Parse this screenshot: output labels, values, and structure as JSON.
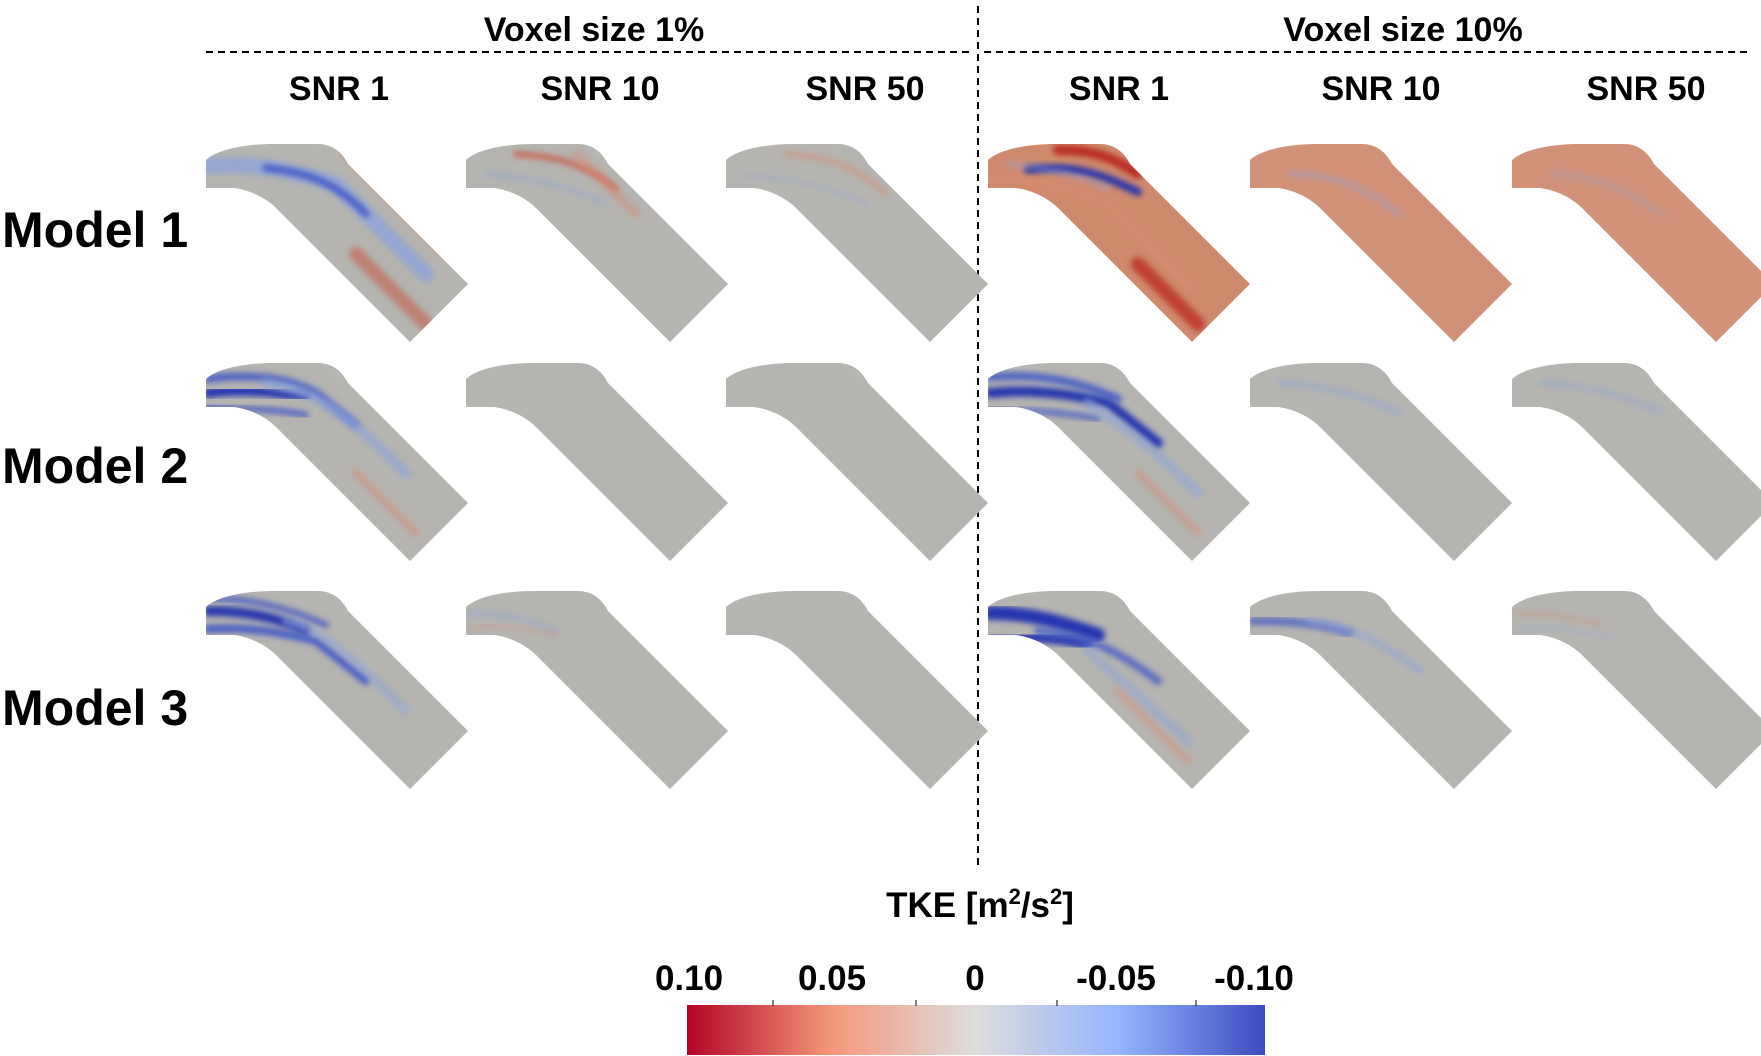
{
  "figure": {
    "groups": [
      {
        "label": "Voxel size 1%",
        "snr_labels": [
          "SNR 1",
          "SNR 10",
          "SNR 50"
        ]
      },
      {
        "label": "Voxel size 10%",
        "snr_labels": [
          "SNR 1",
          "SNR 10",
          "SNR 50"
        ]
      }
    ],
    "models": [
      "Model 1",
      "Model 2",
      "Model 3"
    ],
    "colorbar": {
      "title": "TKE [m²/s²]",
      "title_parts": {
        "prefix": "TKE [m",
        "sup1": "2",
        "mid": "/s",
        "sup2": "2",
        "suffix": "]"
      },
      "tick_labels": [
        "0.10",
        "0.05",
        "0",
        "-0.05",
        "-0.10"
      ],
      "range": [
        0.1,
        -0.1
      ],
      "colors": {
        "max": "#b40426",
        "mid": "#dddcdc",
        "min": "#3b4cc0"
      }
    }
  },
  "colors": {
    "neutral": "#b5b4b0",
    "red": "#c0392b",
    "blue": "#2c3fbf"
  }
}
